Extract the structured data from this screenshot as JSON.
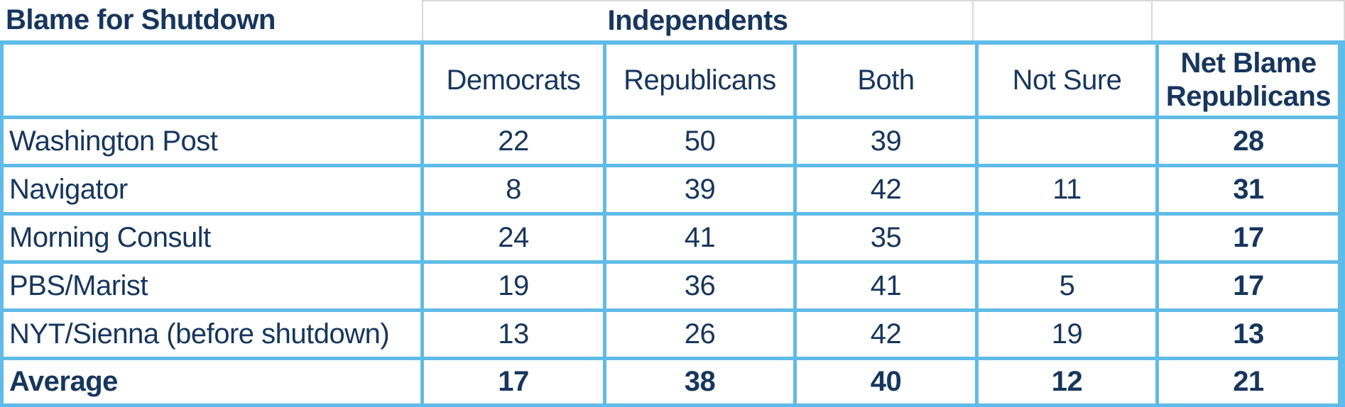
{
  "colors": {
    "border_blue": "#5FBBE7",
    "text_navy": "#17365D",
    "gridline_gray": "#D9D9D9",
    "background": "#FFFFFF"
  },
  "top_band": {
    "title": "Blame for Shutdown",
    "group_header": "Independents"
  },
  "columns": {
    "democrats": "Democrats",
    "republicans": "Republicans",
    "both": "Both",
    "not_sure": "Not Sure",
    "net_line1": "Net Blame",
    "net_line2": "Republicans"
  },
  "rows": [
    {
      "label": "Washington Post",
      "democrats": "22",
      "republicans": "50",
      "both": "39",
      "not_sure": "",
      "net": "28"
    },
    {
      "label": "Navigator",
      "democrats": "8",
      "republicans": "39",
      "both": "42",
      "not_sure": "11",
      "net": "31"
    },
    {
      "label": "Morning Consult",
      "democrats": "24",
      "republicans": "41",
      "both": "35",
      "not_sure": "",
      "net": "17"
    },
    {
      "label": "PBS/Marist",
      "democrats": "19",
      "republicans": "36",
      "both": "41",
      "not_sure": "5",
      "net": "17"
    },
    {
      "label": "NYT/Sienna (before shutdown)",
      "democrats": "13",
      "republicans": "26",
      "both": "42",
      "not_sure": "19",
      "net": "13"
    },
    {
      "label": "Average",
      "democrats": "17",
      "republicans": "38",
      "both": "40",
      "not_sure": "12",
      "net": "21"
    }
  ],
  "chart_data": {
    "type": "table",
    "title": "Blame for Shutdown",
    "group_header": "Independents",
    "columns": [
      "Democrats",
      "Republicans",
      "Both",
      "Not Sure",
      "Net Blame Republicans"
    ],
    "rows": [
      {
        "label": "Washington Post",
        "values": [
          22,
          50,
          39,
          null,
          28
        ]
      },
      {
        "label": "Navigator",
        "values": [
          8,
          39,
          42,
          11,
          31
        ]
      },
      {
        "label": "Morning Consult",
        "values": [
          24,
          41,
          35,
          null,
          17
        ]
      },
      {
        "label": "PBS/Marist",
        "values": [
          19,
          36,
          41,
          5,
          17
        ]
      },
      {
        "label": "NYT/Sienna (before shutdown)",
        "values": [
          13,
          26,
          42,
          19,
          13
        ]
      },
      {
        "label": "Average",
        "values": [
          17,
          38,
          40,
          12,
          21
        ]
      }
    ]
  }
}
